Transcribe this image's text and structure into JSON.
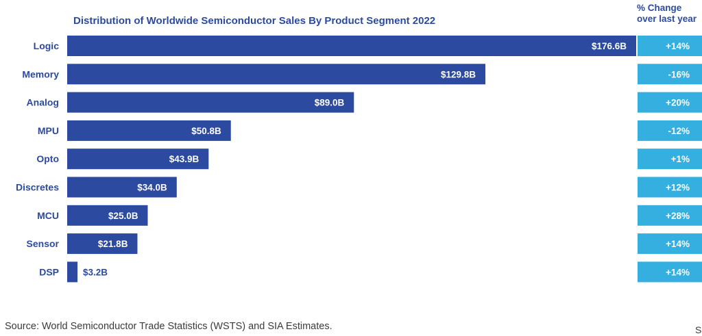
{
  "chart_data": {
    "type": "bar",
    "orientation": "horizontal",
    "title": "Distribution of Worldwide Semiconductor Sales By Product Segment 2022",
    "change_header": "% Change over last year",
    "categories": [
      "Logic",
      "Memory",
      "Analog",
      "MPU",
      "Opto",
      "Discretes",
      "MCU",
      "Sensor",
      "DSP"
    ],
    "values": [
      176.6,
      129.8,
      89.0,
      50.8,
      43.9,
      34.0,
      25.0,
      21.8,
      3.2
    ],
    "value_labels": [
      "$176.6B",
      "$129.8B",
      "$89.0B",
      "$50.8B",
      "$43.9B",
      "$34.0B",
      "$25.0B",
      "$21.8B",
      "$3.2B"
    ],
    "unit": "B USD",
    "percent_change": [
      "+14%",
      "-16%",
      "+20%",
      "-12%",
      "+1%",
      "+12%",
      "+28%",
      "+14%",
      "+14%"
    ],
    "xlim": [
      0,
      176.6
    ],
    "colors": {
      "bar": "#2b4aa0",
      "change_box": "#35aee0",
      "label": "#2b4aa0",
      "bar_text": "#ffffff"
    }
  },
  "source": "Source: World Semiconductor Trade Statistics (WSTS) and SIA Estimates.",
  "source_cut": "So"
}
